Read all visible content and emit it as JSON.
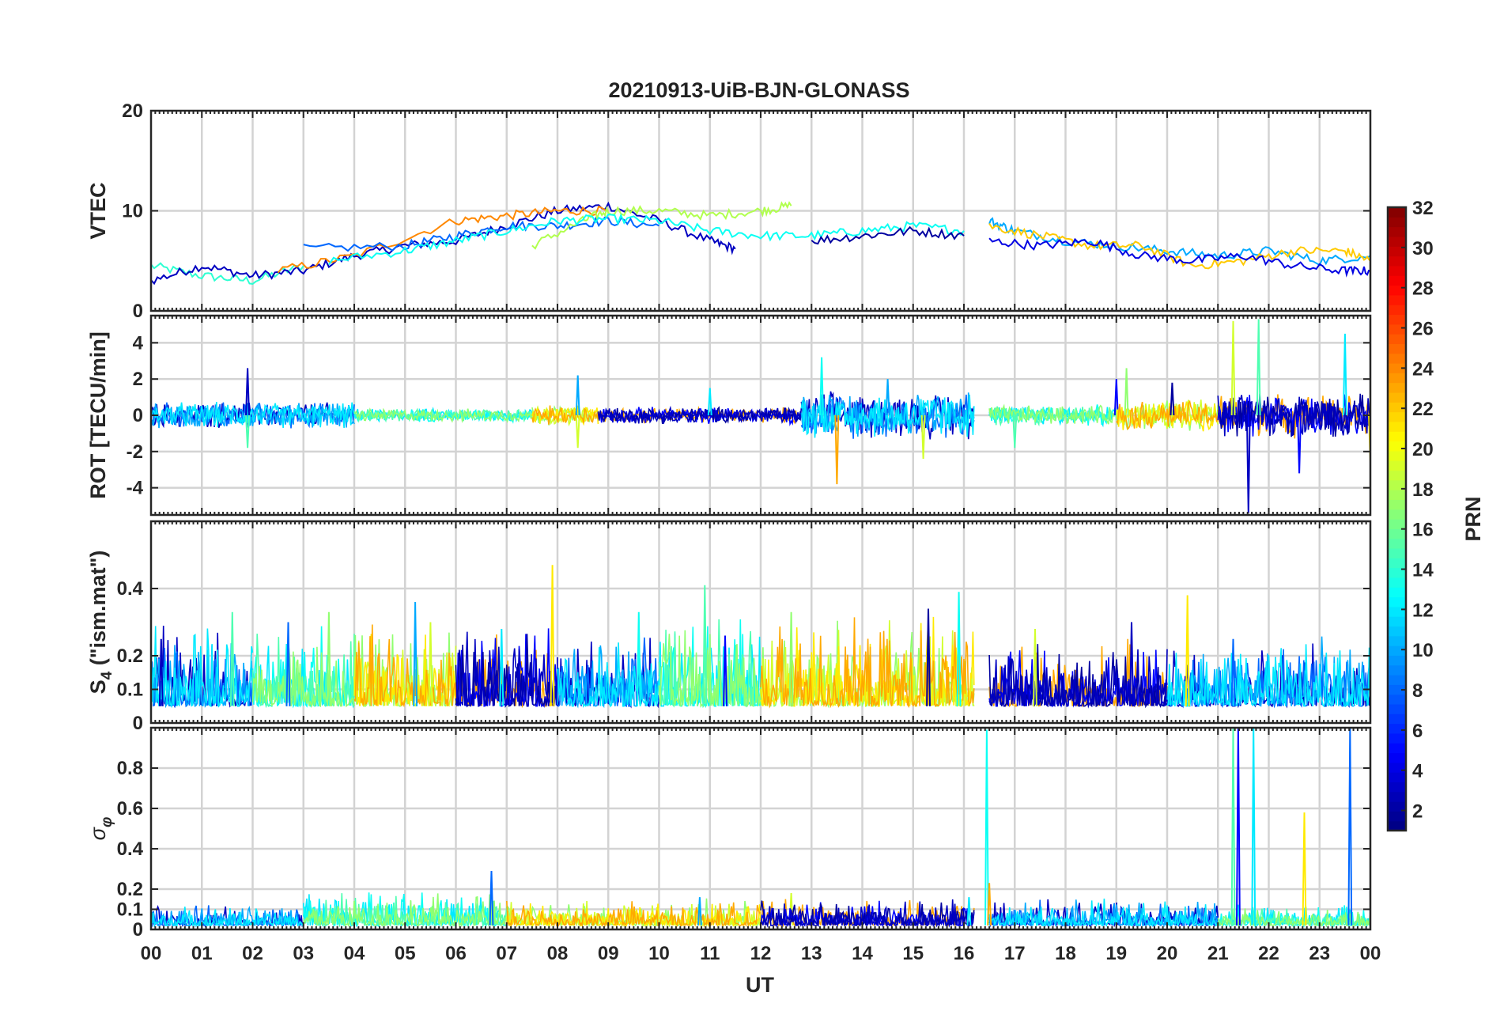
{
  "chart_data": {
    "type": "line",
    "title": "20210913-UiB-BJN-GLONASS",
    "xlabel": "UT",
    "x_tick_labels": [
      "00",
      "01",
      "02",
      "03",
      "04",
      "05",
      "06",
      "07",
      "08",
      "09",
      "10",
      "11",
      "12",
      "13",
      "14",
      "15",
      "16",
      "17",
      "18",
      "19",
      "20",
      "21",
      "22",
      "23",
      "00"
    ],
    "colorbar": {
      "label": "PRN",
      "range": [
        1,
        32
      ],
      "tick_labels": [
        "2",
        "4",
        "6",
        "8",
        "10",
        "12",
        "14",
        "16",
        "18",
        "20",
        "22",
        "24",
        "26",
        "28",
        "30",
        "32"
      ],
      "colormap": "jet"
    },
    "panels": [
      {
        "id": "vtec",
        "ylabel": "VTEC",
        "ylim": [
          0,
          20
        ],
        "y_ticks": [
          0,
          10,
          20
        ],
        "y_tick_labels": [
          "0",
          "10",
          "20"
        ],
        "series": [
          {
            "prn": 14,
            "points": [
              [
                0,
                4.5
              ],
              [
                1,
                3.5
              ],
              [
                2,
                3
              ],
              [
                3,
                4.5
              ]
            ]
          },
          {
            "prn": 3,
            "points": [
              [
                0,
                3
              ],
              [
                1,
                4.5
              ],
              [
                2,
                3.5
              ],
              [
                3,
                4
              ],
              [
                4,
                5.5
              ],
              [
                5,
                6.5
              ],
              [
                6,
                7
              ],
              [
                7,
                8.5
              ],
              [
                8,
                10
              ],
              [
                9,
                10.5
              ],
              [
                10,
                9
              ],
              [
                11,
                7
              ],
              [
                11.5,
                6.2
              ]
            ]
          },
          {
            "prn": 24,
            "points": [
              [
                2.5,
                4
              ],
              [
                4,
                5.5
              ],
              [
                6,
                9
              ],
              [
                7,
                9.5
              ],
              [
                8,
                10
              ],
              [
                9,
                10
              ]
            ]
          },
          {
            "prn": 8,
            "points": [
              [
                3,
                6.2
              ],
              [
                5,
                6.5
              ],
              [
                6,
                7.5
              ],
              [
                7,
                8.5
              ],
              [
                8,
                8.5
              ],
              [
                9,
                9
              ],
              [
                10,
                8.5
              ]
            ]
          },
          {
            "prn": 18,
            "points": [
              [
                7.5,
                6.5
              ],
              [
                8.5,
                9
              ],
              [
                9,
                10
              ],
              [
                10,
                10
              ],
              [
                11,
                9.5
              ],
              [
                12,
                10
              ],
              [
                12.6,
                10.5
              ]
            ]
          },
          {
            "prn": 13,
            "points": [
              [
                3.5,
                5
              ],
              [
                5,
                6
              ],
              [
                6,
                7
              ],
              [
                7,
                8
              ],
              [
                8,
                9
              ],
              [
                9,
                9.2
              ],
              [
                10,
                9
              ],
              [
                11,
                8
              ],
              [
                12,
                7.5
              ],
              [
                13,
                7.5
              ],
              [
                14,
                8
              ],
              [
                15,
                8.5
              ],
              [
                16,
                8
              ]
            ]
          },
          {
            "prn": 2,
            "points": [
              [
                13,
                7
              ],
              [
                14,
                7.5
              ],
              [
                15,
                8
              ],
              [
                16,
                7.5
              ]
            ]
          },
          {
            "prn": 10,
            "points": [
              [
                16.5,
                9
              ],
              [
                17,
                8
              ],
              [
                18,
                7
              ],
              [
                19,
                6.5
              ],
              [
                20,
                6
              ],
              [
                21,
                5.5
              ],
              [
                22,
                6
              ],
              [
                23,
                5
              ],
              [
                24,
                5.5
              ]
            ]
          },
          {
            "prn": 22,
            "points": [
              [
                16.5,
                8.5
              ],
              [
                17.5,
                7.5
              ],
              [
                18.5,
                6.5
              ],
              [
                19.5,
                6.5
              ],
              [
                20.5,
                4.5
              ],
              [
                21.5,
                5
              ],
              [
                22.5,
                6
              ],
              [
                23.5,
                6
              ],
              [
                24,
                5
              ]
            ]
          },
          {
            "prn": 4,
            "points": [
              [
                16.5,
                7
              ],
              [
                17.5,
                6.5
              ],
              [
                18.5,
                7
              ],
              [
                19.5,
                5.5
              ],
              [
                20.5,
                5
              ],
              [
                21.5,
                5.5
              ],
              [
                22.5,
                4.5
              ],
              [
                23.5,
                4
              ],
              [
                24,
                4
              ]
            ]
          }
        ]
      },
      {
        "id": "rot",
        "ylabel": "ROT [TECU/min]",
        "ylim": [
          -5.5,
          5.5
        ],
        "y_ticks": [
          -4,
          -2,
          0,
          2,
          4
        ],
        "y_tick_labels": [
          "-4",
          "-2",
          "0",
          "2",
          "4"
        ],
        "activity": [
          {
            "x": [
              0,
              4
            ],
            "amp": 0.8,
            "spikes": [
              [
                1.9,
                2.6
              ],
              [
                1.9,
                -1.8
              ]
            ]
          },
          {
            "x": [
              4,
              7.5
            ],
            "amp": 0.4,
            "spikes": []
          },
          {
            "x": [
              7.5,
              8.8
            ],
            "amp": 0.6,
            "spikes": [
              [
                8.4,
                2.2
              ],
              [
                8.4,
                -1.8
              ]
            ]
          },
          {
            "x": [
              8.8,
              12.8
            ],
            "amp": 0.5,
            "spikes": [
              [
                11,
                1.5
              ]
            ]
          },
          {
            "x": [
              12.8,
              16.2
            ],
            "amp": 1.4,
            "spikes": [
              [
                13.2,
                3.2
              ],
              [
                13.5,
                -3.8
              ],
              [
                14.5,
                2
              ],
              [
                15.2,
                -2.4
              ]
            ]
          },
          {
            "x": [
              16.5,
              19
            ],
            "amp": 0.6,
            "spikes": [
              [
                17,
                -1.8
              ],
              [
                19,
                2.0
              ]
            ]
          },
          {
            "x": [
              19,
              21
            ],
            "amp": 0.9,
            "spikes": [
              [
                19.2,
                2.6
              ],
              [
                20.1,
                1.8
              ]
            ]
          },
          {
            "x": [
              21,
              24
            ],
            "amp": 1.3,
            "spikes": [
              [
                21.3,
                5.2
              ],
              [
                21.6,
                -5.4
              ],
              [
                21.8,
                5.3
              ],
              [
                22.6,
                -3.2
              ],
              [
                23.5,
                4.5
              ],
              [
                24,
                -2.6
              ]
            ]
          }
        ]
      },
      {
        "id": "s4",
        "ylabel": "S4 (\"ism.mat\")",
        "ylabel_main": "S",
        "ylabel_sub": "4",
        "ylabel_rest": " (\"ism.mat\")",
        "ylim": [
          0,
          0.6
        ],
        "y_ticks": [
          0,
          0.1,
          0.2,
          0.4
        ],
        "y_tick_labels": [
          "0",
          "0.1",
          "0.2",
          "0.4"
        ],
        "activity": [
          {
            "x": [
              0,
              2
            ],
            "amp": 0.18,
            "spikes": [
              [
                0.2,
                0.25
              ],
              [
                1.6,
                0.33
              ]
            ]
          },
          {
            "x": [
              2,
              4
            ],
            "amp": 0.16,
            "spikes": [
              [
                2.7,
                0.3
              ],
              [
                3.5,
                0.33
              ]
            ]
          },
          {
            "x": [
              4,
              6
            ],
            "amp": 0.18,
            "spikes": [
              [
                5.2,
                0.36
              ],
              [
                5.5,
                0.3
              ]
            ]
          },
          {
            "x": [
              6,
              8
            ],
            "amp": 0.16,
            "spikes": [
              [
                6.9,
                0.28
              ],
              [
                7.9,
                0.47
              ]
            ]
          },
          {
            "x": [
              8,
              10
            ],
            "amp": 0.15,
            "spikes": [
              [
                9.6,
                0.33
              ]
            ]
          },
          {
            "x": [
              10,
              12
            ],
            "amp": 0.18,
            "spikes": [
              [
                10.9,
                0.41
              ],
              [
                11.3,
                0.26
              ]
            ]
          },
          {
            "x": [
              12,
              16.2
            ],
            "amp": 0.18,
            "spikes": [
              [
                12.6,
                0.33
              ],
              [
                15.3,
                0.34
              ],
              [
                15.9,
                0.39
              ]
            ]
          },
          {
            "x": [
              16.5,
              20
            ],
            "amp": 0.14,
            "spikes": [
              [
                17.4,
                0.28
              ],
              [
                19.3,
                0.3
              ]
            ]
          },
          {
            "x": [
              20,
              24
            ],
            "amp": 0.14,
            "spikes": [
              [
                20.4,
                0.38
              ],
              [
                21.3,
                0.25
              ]
            ]
          }
        ]
      },
      {
        "id": "sigma",
        "ylabel": "σφ",
        "ylabel_main": "σ",
        "ylabel_sub": "φ",
        "ylim": [
          0,
          1
        ],
        "y_ticks": [
          0,
          0.1,
          0.2,
          0.4,
          0.6,
          0.8
        ],
        "y_tick_labels": [
          "0",
          "0.1",
          "0.2",
          "0.4",
          "0.6",
          "0.8"
        ],
        "activity": [
          {
            "x": [
              0,
              3
            ],
            "amp": 0.07,
            "spikes": []
          },
          {
            "x": [
              3,
              7
            ],
            "amp": 0.12,
            "spikes": [
              [
                6.7,
                0.29
              ]
            ]
          },
          {
            "x": [
              7,
              12
            ],
            "amp": 0.09,
            "spikes": [
              [
                10.8,
                0.16
              ],
              [
                12.6,
                0.18
              ]
            ]
          },
          {
            "x": [
              12,
              16.2
            ],
            "amp": 0.09,
            "spikes": [
              [
                16.1,
                0.16
              ]
            ]
          },
          {
            "x": [
              16.5,
              21
            ],
            "amp": 0.09,
            "spikes": [
              [
                16.45,
                0.99
              ],
              [
                16.5,
                0.23
              ]
            ]
          },
          {
            "x": [
              21,
              24
            ],
            "amp": 0.07,
            "spikes": [
              [
                21.3,
                1.0
              ],
              [
                21.4,
                1.0
              ],
              [
                21.7,
                1.0
              ],
              [
                22.7,
                0.58
              ],
              [
                23.6,
                1.0
              ]
            ]
          }
        ]
      }
    ]
  }
}
